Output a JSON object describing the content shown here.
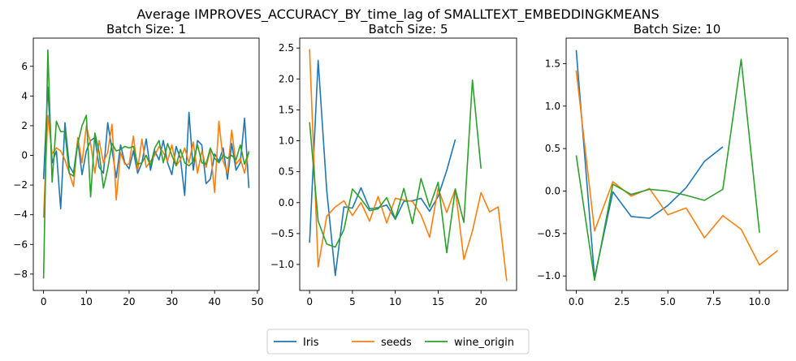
{
  "figure": {
    "suptitle": "Average IMPROVES_ACCURACY_BY_time_lag of SMALLTEXT_EMBEDDINGKMEANS"
  },
  "legend": {
    "placement": "bottom-center",
    "entries": [
      "Iris",
      "seeds",
      "wine_origin"
    ]
  },
  "colors": {
    "Iris": "#1f77b4",
    "seeds": "#ff7f0e",
    "wine_origin": "#2ca02c"
  },
  "chart_data": [
    {
      "type": "line",
      "title": "Batch Size: 1",
      "xlabel": "",
      "ylabel": "",
      "xlim": [
        -2.4,
        50.4
      ],
      "ylim": [
        -9.1,
        7.9
      ],
      "xticks": [
        0,
        10,
        20,
        30,
        40,
        50
      ],
      "yticks": [
        -8,
        -6,
        -4,
        -2,
        0,
        2,
        4,
        6
      ],
      "grid": false,
      "series": [
        {
          "name": "Iris",
          "x": [
            0,
            1,
            2,
            3,
            4,
            5,
            6,
            7,
            8,
            9,
            10,
            11,
            12,
            13,
            14,
            15,
            16,
            17,
            18,
            19,
            20,
            21,
            22,
            23,
            24,
            25,
            26,
            27,
            28,
            29,
            30,
            31,
            32,
            33,
            34,
            35,
            36,
            37,
            38,
            39,
            40,
            41,
            42,
            43,
            44,
            45,
            46,
            47,
            48
          ],
          "values": [
            -1.6,
            4.6,
            -0.5,
            0.3,
            -3.6,
            2.2,
            -0.7,
            -1.2,
            1.0,
            -1.3,
            0.3,
            1.0,
            1.2,
            -0.8,
            -1.2,
            2.2,
            0.4,
            -1.5,
            0.7,
            -0.5,
            -0.9,
            0.3,
            -1.2,
            -0.5,
            1.1,
            -1.0,
            0.3,
            -0.3,
            1.0,
            -0.5,
            -1.3,
            0.6,
            -0.2,
            -2.7,
            2.9,
            -1.0,
            1.0,
            0.7,
            -1.9,
            -1.6,
            0.1,
            -0.4,
            0.5,
            -1.6,
            0.8,
            -1.0,
            -0.5,
            2.5,
            -2.2
          ]
        },
        {
          "name": "seeds",
          "x": [
            0,
            1,
            2,
            3,
            4,
            5,
            6,
            7,
            8,
            9,
            10,
            11,
            12,
            13,
            14,
            15,
            16,
            17,
            18,
            19,
            20,
            21,
            22,
            23,
            24,
            25,
            26,
            27,
            28,
            29,
            30,
            31,
            32,
            33,
            34,
            35,
            36,
            37,
            38,
            39,
            40,
            41,
            42,
            43,
            44,
            45,
            46,
            47,
            48
          ],
          "values": [
            -4.2,
            2.7,
            0.1,
            0.5,
            0.3,
            -0.3,
            -1.2,
            -2.1,
            1.2,
            -0.5,
            2.0,
            0.8,
            -1.2,
            1.0,
            -0.5,
            0.2,
            2.1,
            -3.0,
            0.2,
            -0.6,
            -0.6,
            1.3,
            -1.0,
            1.1,
            -0.8,
            -0.4,
            0.0,
            0.6,
            0.2,
            -0.4,
            0.7,
            -0.7,
            -0.3,
            0.5,
            -0.5,
            0.9,
            -1.2,
            0.3,
            -0.8,
            0.4,
            -2.5,
            2.3,
            -0.4,
            -1.2,
            1.7,
            -0.6,
            -0.2,
            -1.2,
            0.3
          ]
        },
        {
          "name": "wine_origin",
          "x": [
            0,
            1,
            2,
            3,
            4,
            5,
            6,
            7,
            8,
            9,
            10,
            11,
            12,
            13,
            14,
            15,
            16,
            17,
            18,
            19,
            20,
            21,
            22,
            23,
            24,
            25,
            26,
            27,
            28,
            29,
            30,
            31,
            32,
            33,
            34,
            35,
            36,
            37,
            38,
            39,
            40,
            41,
            42,
            43,
            44,
            45,
            46,
            47,
            48
          ],
          "values": [
            -8.3,
            7.1,
            -1.8,
            2.3,
            1.6,
            1.6,
            -1.2,
            -1.4,
            0.8,
            2.0,
            2.7,
            -2.8,
            1.5,
            0.2,
            -2.2,
            -0.9,
            0.8,
            0.3,
            0.4,
            0.6,
            0.5,
            0.6,
            -0.6,
            -0.5,
            0.0,
            -0.7,
            0.5,
            1.0,
            -0.5,
            0.8,
            0.0,
            -0.7,
            0.4,
            -0.5,
            -0.7,
            -0.4,
            0.7,
            -0.5,
            -0.6,
            0.5,
            -0.2,
            -0.5,
            0.0,
            -0.2,
            0.0,
            -0.3,
            0.7,
            -0.6,
            0.2
          ]
        }
      ]
    },
    {
      "type": "line",
      "title": "Batch Size: 5",
      "xlabel": "",
      "ylabel": "",
      "xlim": [
        -1.15,
        24.15
      ],
      "ylim": [
        -1.42,
        2.66
      ],
      "xticks": [
        0,
        5,
        10,
        15,
        20
      ],
      "yticks": [
        -1.0,
        -0.5,
        0.0,
        0.5,
        1.0,
        1.5,
        2.0,
        2.5
      ],
      "grid": false,
      "series": [
        {
          "name": "Iris",
          "x": [
            0,
            1,
            2,
            3,
            4,
            5,
            6,
            7,
            8,
            9,
            10,
            11,
            12,
            13,
            14,
            15,
            16,
            17
          ],
          "values": [
            -0.65,
            2.3,
            0.2,
            -1.18,
            -0.07,
            -0.09,
            0.24,
            -0.1,
            -0.08,
            -0.04,
            -0.27,
            0.02,
            0.03,
            0.07,
            -0.14,
            0.1,
            0.52,
            1.02
          ]
        },
        {
          "name": "seeds",
          "x": [
            0,
            1,
            2,
            3,
            4,
            5,
            6,
            7,
            8,
            9,
            10,
            11,
            12,
            13,
            14,
            15,
            16,
            17,
            18,
            19,
            20,
            21,
            22,
            23
          ],
          "values": [
            2.48,
            -1.04,
            -0.22,
            -0.07,
            0.03,
            -0.21,
            0.0,
            -0.3,
            0.1,
            -0.33,
            0.07,
            0.04,
            0.02,
            -0.2,
            -0.56,
            0.23,
            -0.16,
            0.22,
            -0.92,
            -0.46,
            0.16,
            -0.15,
            -0.07,
            -1.27
          ]
        },
        {
          "name": "wine_origin",
          "x": [
            0,
            1,
            2,
            3,
            4,
            5,
            6,
            7,
            8,
            9,
            10,
            11,
            12,
            13,
            14,
            15,
            16,
            17,
            18,
            19,
            20
          ],
          "values": [
            1.3,
            -0.3,
            -0.67,
            -0.72,
            -0.44,
            0.22,
            0.06,
            -0.13,
            -0.1,
            0.08,
            -0.26,
            0.23,
            -0.34,
            0.39,
            -0.07,
            0.33,
            -0.81,
            0.22,
            -0.32,
            1.98,
            0.55
          ]
        }
      ]
    },
    {
      "type": "line",
      "title": "Batch Size: 10",
      "xlabel": "",
      "ylabel": "",
      "xlim": [
        -0.55,
        11.55
      ],
      "ylim": [
        -1.17,
        1.8
      ],
      "xticks": [
        0.0,
        2.5,
        5.0,
        7.5,
        10.0
      ],
      "yticks": [
        -1.0,
        -0.5,
        0.0,
        0.5,
        1.0,
        1.5
      ],
      "grid": false,
      "series": [
        {
          "name": "Iris",
          "x": [
            0,
            1,
            2,
            3,
            4,
            5,
            6,
            7,
            8
          ],
          "values": [
            1.66,
            -1.02,
            -0.01,
            -0.3,
            -0.32,
            -0.17,
            0.04,
            0.35,
            0.52
          ]
        },
        {
          "name": "seeds",
          "x": [
            0,
            1,
            2,
            3,
            4,
            5,
            6,
            7,
            8,
            9,
            10,
            11
          ],
          "values": [
            1.42,
            -0.47,
            0.11,
            -0.06,
            0.03,
            -0.28,
            -0.2,
            -0.55,
            -0.29,
            -0.45,
            -0.87,
            -0.7
          ]
        },
        {
          "name": "wine_origin",
          "x": [
            0,
            1,
            2,
            3,
            4,
            5,
            6,
            7,
            8,
            9,
            10
          ],
          "values": [
            0.42,
            -1.05,
            0.08,
            -0.04,
            0.02,
            0.0,
            -0.05,
            -0.11,
            0.02,
            1.55,
            -0.49
          ]
        }
      ]
    }
  ]
}
